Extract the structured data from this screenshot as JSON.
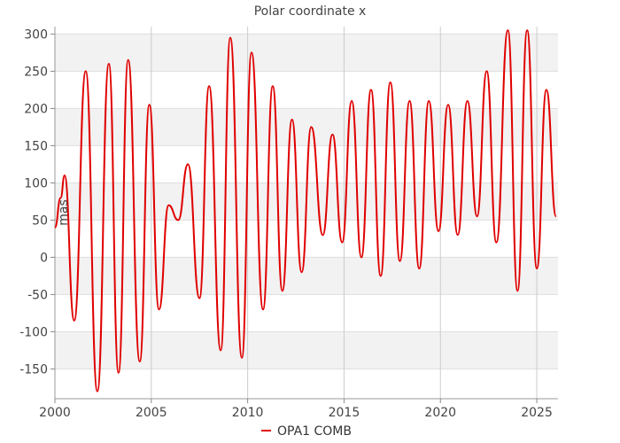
{
  "chart_data": {
    "type": "line",
    "title": "Polar coordinate x",
    "ylabel": "mas",
    "xlabel": "",
    "xlim": [
      2000.0,
      2026.1
    ],
    "ylim": [
      -190,
      310
    ],
    "x_ticks": [
      2000,
      2005,
      2010,
      2015,
      2020,
      2025
    ],
    "y_ticks": [
      -150,
      -100,
      -50,
      0,
      50,
      100,
      150,
      200,
      250,
      300
    ],
    "grid": true,
    "banded_background": true,
    "legend_position": "bottom-center",
    "series": [
      {
        "name": "OPA1 COMB",
        "color": "#e00000",
        "x": [
          2000.0,
          2000.3,
          2000.5,
          2001.0,
          2001.6,
          2002.2,
          2002.8,
          2003.3,
          2003.8,
          2004.4,
          2004.9,
          2005.4,
          2005.9,
          2006.4,
          2006.9,
          2007.5,
          2008.0,
          2008.6,
          2009.1,
          2009.7,
          2010.2,
          2010.8,
          2011.3,
          2011.8,
          2012.3,
          2012.8,
          2013.3,
          2013.9,
          2014.4,
          2014.9,
          2015.4,
          2015.9,
          2016.4,
          2016.9,
          2017.4,
          2017.9,
          2018.4,
          2018.9,
          2019.4,
          2019.9,
          2020.4,
          2020.9,
          2021.4,
          2021.9,
          2022.4,
          2022.9,
          2023.5,
          2024.0,
          2024.5,
          2025.0,
          2025.5,
          2026.0
        ],
        "y": [
          40,
          80,
          110,
          -85,
          250,
          -180,
          260,
          -155,
          265,
          -140,
          205,
          -70,
          70,
          50,
          125,
          -55,
          230,
          -125,
          295,
          -135,
          275,
          -70,
          230,
          -45,
          185,
          -20,
          175,
          30,
          165,
          20,
          210,
          0,
          225,
          -25,
          235,
          -5,
          210,
          -15,
          210,
          35,
          205,
          30,
          210,
          55,
          250,
          20,
          305,
          -45,
          305,
          -15,
          225,
          55
        ]
      }
    ]
  }
}
